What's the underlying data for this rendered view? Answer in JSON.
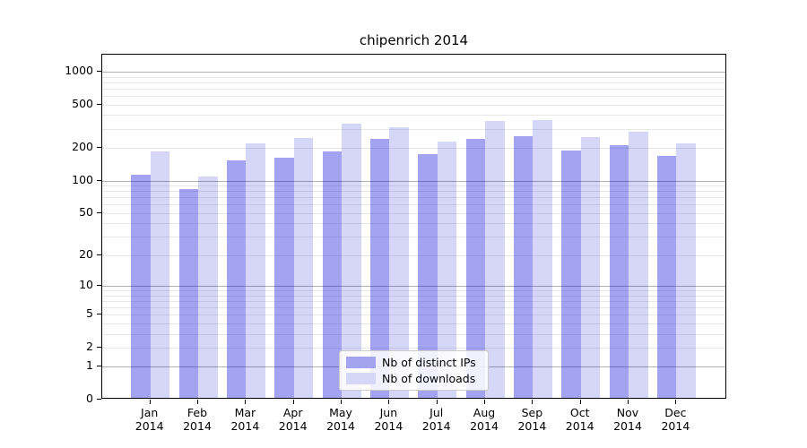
{
  "chart_data": {
    "type": "bar",
    "title": "chipenrich 2014",
    "scale": "log1p",
    "grid": true,
    "legend_position": "inside-bottom-center",
    "categories": [
      "Jan",
      "Feb",
      "Mar",
      "Apr",
      "May",
      "Jun",
      "Jul",
      "Aug",
      "Sep",
      "Oct",
      "Nov",
      "Dec"
    ],
    "x_year_label": "2014",
    "series": [
      {
        "name": "Nb of distinct IPs",
        "color": "#a3a3f0",
        "fill_rgba": "rgba(0,0,215,0.36)",
        "values": [
          113,
          84,
          154,
          161,
          184,
          242,
          176,
          243,
          256,
          188,
          211,
          170
        ]
      },
      {
        "name": "Nb of downloads",
        "color": "#d6d6f9",
        "fill_rgba": "rgba(0,0,215,0.16)",
        "values": [
          186,
          109,
          222,
          245,
          335,
          310,
          228,
          355,
          360,
          252,
          283,
          222
        ]
      }
    ],
    "y_ticks": [
      0,
      1,
      2,
      5,
      10,
      20,
      50,
      100,
      200,
      500,
      1000
    ],
    "y_major_gridlines": [
      1,
      10,
      100,
      1000
    ],
    "ylim": [
      0,
      1430
    ],
    "xlabel": "",
    "ylabel": ""
  },
  "colors": {
    "bar_dark": "#a3a3f0",
    "bar_light": "#d6d6f9",
    "grid_major": "#b0b0b0",
    "grid_minor": "#e8e8e8",
    "axis": "#000000",
    "background": "#ffffff"
  }
}
